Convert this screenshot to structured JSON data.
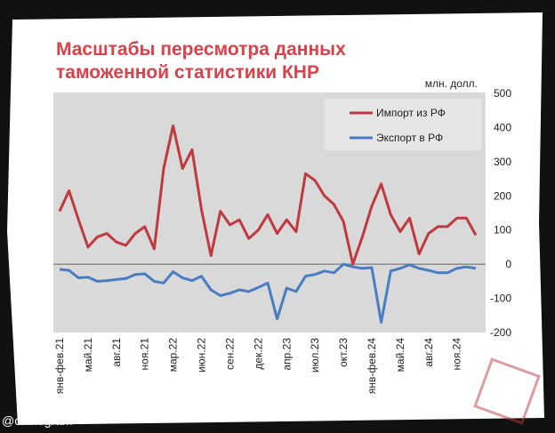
{
  "chart_data": {
    "type": "line",
    "title": [
      "Масштабы пересмотра данных",
      "таможенной статистики КНР"
    ],
    "unit_label": "млн. долл.",
    "watermark": "@chinogram",
    "categories": [
      "янв-фев.21",
      null,
      null,
      "май.21",
      null,
      null,
      "авг.21",
      null,
      null,
      "ноя.21",
      null,
      null,
      "мар.22",
      null,
      null,
      "июн.22",
      null,
      null,
      "сен.22",
      null,
      null,
      "дек.22",
      null,
      null,
      "апр.23",
      null,
      null,
      "июл.23",
      null,
      null,
      "окт.23",
      null,
      null,
      "янв-фев.24",
      null,
      null,
      "май.24",
      null,
      null,
      "авг.24",
      null,
      null,
      "ноя.24",
      null,
      null
    ],
    "series": [
      {
        "name": "Импорт из РФ",
        "color": "#c0393f",
        "values": [
          155,
          215,
          130,
          50,
          80,
          90,
          65,
          55,
          90,
          110,
          45,
          280,
          405,
          280,
          335,
          160,
          25,
          155,
          115,
          130,
          75,
          100,
          145,
          90,
          130,
          95,
          265,
          245,
          200,
          175,
          125,
          0,
          80,
          170,
          235,
          145,
          95,
          135,
          30,
          90,
          110,
          110,
          135,
          135,
          85
        ]
      },
      {
        "name": "Экспорт в РФ",
        "color": "#4a7cc1",
        "values": [
          -15,
          -18,
          -40,
          -38,
          -50,
          -48,
          -45,
          -42,
          -30,
          -28,
          -50,
          -55,
          -22,
          -40,
          -48,
          -35,
          -75,
          -92,
          -85,
          -75,
          -80,
          -68,
          -55,
          -160,
          -70,
          -80,
          -35,
          -30,
          -20,
          -25,
          0,
          -8,
          -12,
          -10,
          -170,
          -20,
          -12,
          -2,
          -12,
          -18,
          -25,
          -25,
          -12,
          -8,
          -12
        ]
      }
    ],
    "ylim": [
      -200,
      500
    ],
    "yticks": [
      -200,
      -100,
      0,
      100,
      200,
      300,
      400,
      500
    ],
    "y_axis_side": "right",
    "legend": "upper right"
  }
}
